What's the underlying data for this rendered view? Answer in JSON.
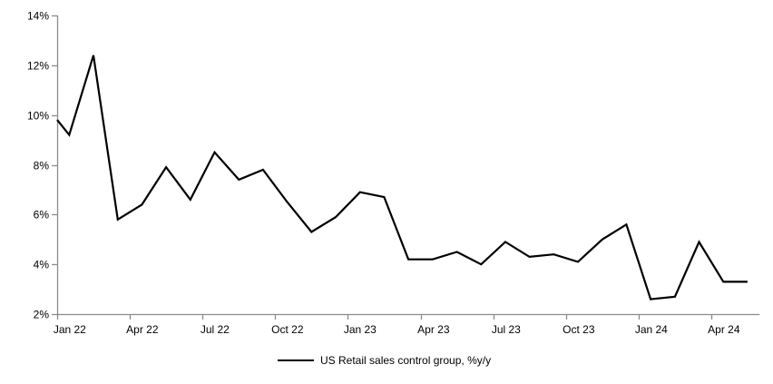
{
  "chart_data": {
    "type": "line",
    "title": "",
    "xlabel": "",
    "ylabel": "",
    "grid": false,
    "x_categories": [
      "Jan 22",
      "Feb 22",
      "Mar 22",
      "Apr 22",
      "May 22",
      "Jun 22",
      "Jul 22",
      "Aug 22",
      "Sep 22",
      "Oct 22",
      "Nov 22",
      "Dec 22",
      "Jan 23",
      "Feb 23",
      "Mar 23",
      "Apr 23",
      "May 23",
      "Jun 23",
      "Jul 23",
      "Aug 23",
      "Sep 23",
      "Oct 23",
      "Nov 23",
      "Dec 23",
      "Jan 24",
      "Feb 24",
      "Mar 24",
      "Apr 24",
      "May 24"
    ],
    "series": [
      {
        "name": "US Retail sales control group, %y/y",
        "color": "#000000",
        "values": [
          9.2,
          12.4,
          5.8,
          6.4,
          7.9,
          6.6,
          8.5,
          7.4,
          7.8,
          6.5,
          5.3,
          5.9,
          6.9,
          6.7,
          4.2,
          4.2,
          4.5,
          4.0,
          4.9,
          4.3,
          4.4,
          4.1,
          5.0,
          5.6,
          2.6,
          2.7,
          4.9,
          3.3,
          3.3
        ]
      }
    ],
    "left_edge_value": 9.8,
    "x_tick_labels": [
      "Jan 22",
      "Apr 22",
      "Jul 22",
      "Oct 22",
      "Jan 23",
      "Apr 23",
      "Jul 23",
      "Oct 23",
      "Jan 24",
      "Apr 24"
    ],
    "x_tick_every_n_categories": 3,
    "y_ticks": [
      2,
      4,
      6,
      8,
      10,
      12,
      14
    ],
    "y_tick_labels": [
      "2%",
      "4%",
      "6%",
      "8%",
      "10%",
      "12%",
      "14%"
    ],
    "ylim": [
      2,
      14
    ],
    "legend": {
      "label": "US Retail sales control group, %y/y",
      "position": "bottom-center",
      "marker": "line"
    },
    "colors": {
      "line": "#000000",
      "axis": "#8c8c8c",
      "text": "#000000",
      "background": "#ffffff"
    }
  }
}
